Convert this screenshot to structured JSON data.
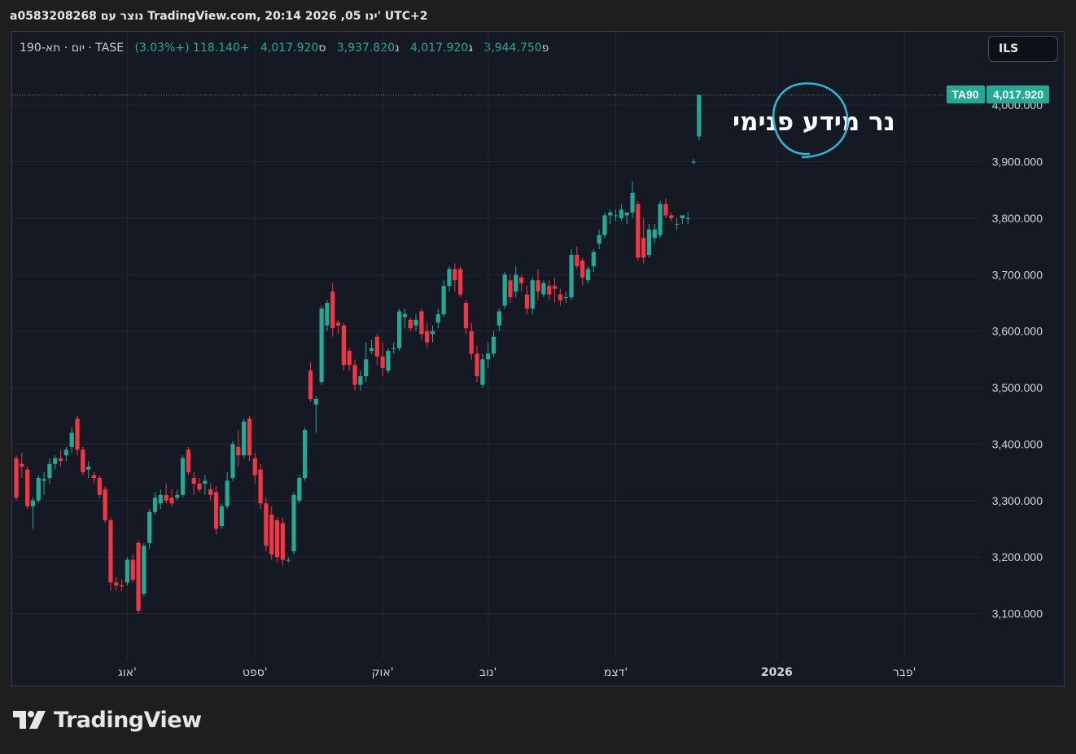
{
  "header": {
    "title_text": "a0583208268 נוצר עם TradingView.com, 20:14 2026 ,05 ינו' UTC+2"
  },
  "legend": {
    "symbol": "1יום · תא-90 · TASE",
    "open_label": "פ",
    "open": "3,944.750",
    "high_label": "ג",
    "high": "4,017.920",
    "low_label": "נ",
    "low": "3,937.820",
    "close_label": "ס",
    "close": "4,017.920",
    "change": "+118.140 (+3.03%)"
  },
  "currency_button": "ILS",
  "price_label": {
    "ticker": "TA90",
    "value": "4,017.920"
  },
  "annotation": {
    "text": "נר מידע פנימי"
  },
  "footer": {
    "brand": "TradingView"
  },
  "colors": {
    "up": "#22ab94",
    "down": "#f23645",
    "background": "#151924",
    "grid": "#232733",
    "annotation_circle": "#2ab8d6"
  },
  "icons": {
    "footer": "tradingview-logo-icon"
  },
  "chart_data": {
    "type": "candlestick",
    "title": "",
    "ylim": [
      3020,
      4130
    ],
    "yticks": [
      3100,
      3200,
      3300,
      3400,
      3500,
      3600,
      3700,
      3800,
      3900,
      4000
    ],
    "ytick_labels": [
      "3,100.000",
      "3,200.000",
      "3,300.000",
      "3,400.000",
      "3,500.000",
      "3,600.000",
      "3,700.000",
      "3,800.000",
      "3,900.000",
      "4,000.000"
    ],
    "xticks": [
      {
        "label": "אוג'",
        "index": 20,
        "bold": false
      },
      {
        "label": "ספט'",
        "index": 43,
        "bold": false
      },
      {
        "label": "אוק'",
        "index": 66,
        "bold": false
      },
      {
        "label": "נוב'",
        "index": 85,
        "bold": false
      },
      {
        "label": "דצמ'",
        "index": 108,
        "bold": false
      },
      {
        "label": "2026",
        "index": 137,
        "bold": true
      },
      {
        "label": "פבר'",
        "index": 160,
        "bold": false
      }
    ],
    "last_price": 4017.92,
    "candles": [
      [
        3375,
        3380,
        3300,
        3305
      ],
      [
        3365,
        3385,
        3340,
        3360
      ],
      [
        3355,
        3360,
        3285,
        3290
      ],
      [
        3290,
        3305,
        3250,
        3300
      ],
      [
        3300,
        3345,
        3295,
        3340
      ],
      [
        3335,
        3350,
        3310,
        3338
      ],
      [
        3340,
        3375,
        3330,
        3365
      ],
      [
        3365,
        3380,
        3355,
        3375
      ],
      [
        3375,
        3390,
        3360,
        3370
      ],
      [
        3380,
        3395,
        3370,
        3390
      ],
      [
        3395,
        3430,
        3385,
        3420
      ],
      [
        3445,
        3450,
        3380,
        3390
      ],
      [
        3390,
        3395,
        3345,
        3350
      ],
      [
        3355,
        3370,
        3340,
        3360
      ],
      [
        3345,
        3350,
        3330,
        3340
      ],
      [
        3340,
        3345,
        3305,
        3310
      ],
      [
        3320,
        3325,
        3260,
        3265
      ],
      [
        3265,
        3270,
        3140,
        3155
      ],
      [
        3155,
        3165,
        3140,
        3150
      ],
      [
        3150,
        3160,
        3140,
        3148
      ],
      [
        3155,
        3200,
        3150,
        3195
      ],
      [
        3195,
        3205,
        3155,
        3160
      ],
      [
        3225,
        3230,
        3100,
        3105
      ],
      [
        3135,
        3225,
        3130,
        3220
      ],
      [
        3225,
        3285,
        3215,
        3280
      ],
      [
        3280,
        3315,
        3275,
        3305
      ],
      [
        3295,
        3320,
        3285,
        3310
      ],
      [
        3310,
        3330,
        3295,
        3300
      ],
      [
        3305,
        3320,
        3290,
        3295
      ],
      [
        3305,
        3320,
        3300,
        3310
      ],
      [
        3310,
        3380,
        3305,
        3375
      ],
      [
        3390,
        3395,
        3345,
        3350
      ],
      [
        3340,
        3350,
        3310,
        3330
      ],
      [
        3330,
        3340,
        3315,
        3320
      ],
      [
        3330,
        3345,
        3310,
        3335
      ],
      [
        3320,
        3330,
        3300,
        3310
      ],
      [
        3315,
        3325,
        3240,
        3250
      ],
      [
        3255,
        3295,
        3250,
        3290
      ],
      [
        3290,
        3350,
        3285,
        3335
      ],
      [
        3340,
        3405,
        3335,
        3400
      ],
      [
        3395,
        3425,
        3360,
        3380
      ],
      [
        3380,
        3445,
        3375,
        3440
      ],
      [
        3445,
        3450,
        3370,
        3380
      ],
      [
        3375,
        3385,
        3330,
        3345
      ],
      [
        3355,
        3365,
        3285,
        3295
      ],
      [
        3295,
        3305,
        3210,
        3220
      ],
      [
        3275,
        3290,
        3195,
        3205
      ],
      [
        3265,
        3270,
        3190,
        3200
      ],
      [
        3260,
        3270,
        3185,
        3195
      ],
      [
        3195,
        3200,
        3190,
        3195
      ],
      [
        3210,
        3315,
        3205,
        3310
      ],
      [
        3300,
        3345,
        3295,
        3340
      ],
      [
        3340,
        3430,
        3335,
        3425
      ],
      [
        3530,
        3545,
        3475,
        3480
      ],
      [
        3470,
        3485,
        3420,
        3480
      ],
      [
        3510,
        3645,
        3505,
        3640
      ],
      [
        3610,
        3655,
        3600,
        3650
      ],
      [
        3670,
        3685,
        3590,
        3605
      ],
      [
        3615,
        3620,
        3595,
        3610
      ],
      [
        3610,
        3615,
        3530,
        3540
      ],
      [
        3565,
        3570,
        3530,
        3540
      ],
      [
        3540,
        3550,
        3495,
        3505
      ],
      [
        3505,
        3530,
        3495,
        3520
      ],
      [
        3520,
        3580,
        3510,
        3550
      ],
      [
        3565,
        3585,
        3560,
        3570
      ],
      [
        3590,
        3595,
        3540,
        3555
      ],
      [
        3555,
        3580,
        3520,
        3535
      ],
      [
        3530,
        3570,
        3525,
        3565
      ],
      [
        3570,
        3580,
        3560,
        3570
      ],
      [
        3570,
        3640,
        3565,
        3635
      ],
      [
        3625,
        3640,
        3605,
        3630
      ],
      [
        3620,
        3625,
        3600,
        3605
      ],
      [
        3610,
        3630,
        3600,
        3620
      ],
      [
        3635,
        3640,
        3585,
        3595
      ],
      [
        3600,
        3615,
        3570,
        3580
      ],
      [
        3595,
        3610,
        3580,
        3600
      ],
      [
        3615,
        3640,
        3605,
        3630
      ],
      [
        3630,
        3690,
        3625,
        3680
      ],
      [
        3680,
        3715,
        3670,
        3710
      ],
      [
        3710,
        3720,
        3670,
        3690
      ],
      [
        3710,
        3715,
        3660,
        3665
      ],
      [
        3650,
        3655,
        3595,
        3605
      ],
      [
        3600,
        3615,
        3550,
        3560
      ],
      [
        3560,
        3575,
        3510,
        3520
      ],
      [
        3505,
        3560,
        3500,
        3550
      ],
      [
        3550,
        3580,
        3535,
        3560
      ],
      [
        3560,
        3600,
        3555,
        3590
      ],
      [
        3610,
        3640,
        3600,
        3635
      ],
      [
        3645,
        3705,
        3640,
        3700
      ],
      [
        3690,
        3700,
        3650,
        3660
      ],
      [
        3670,
        3715,
        3660,
        3700
      ],
      [
        3695,
        3700,
        3670,
        3685
      ],
      [
        3665,
        3680,
        3630,
        3640
      ],
      [
        3640,
        3695,
        3630,
        3690
      ],
      [
        3690,
        3710,
        3655,
        3670
      ],
      [
        3665,
        3690,
        3660,
        3685
      ],
      [
        3680,
        3690,
        3655,
        3665
      ],
      [
        3680,
        3695,
        3650,
        3675
      ],
      [
        3665,
        3675,
        3645,
        3655
      ],
      [
        3660,
        3670,
        3650,
        3660
      ],
      [
        3660,
        3745,
        3655,
        3735
      ],
      [
        3735,
        3750,
        3710,
        3715
      ],
      [
        3725,
        3730,
        3680,
        3695
      ],
      [
        3690,
        3715,
        3685,
        3710
      ],
      [
        3715,
        3745,
        3705,
        3740
      ],
      [
        3755,
        3780,
        3745,
        3770
      ],
      [
        3770,
        3810,
        3765,
        3805
      ],
      [
        3805,
        3815,
        3790,
        3810
      ],
      [
        3805,
        3815,
        3795,
        3805
      ],
      [
        3800,
        3825,
        3795,
        3815
      ],
      [
        3805,
        3810,
        3790,
        3810
      ],
      [
        3810,
        3865,
        3800,
        3845
      ],
      [
        3825,
        3830,
        3725,
        3730
      ],
      [
        3765,
        3800,
        3720,
        3730
      ],
      [
        3735,
        3790,
        3730,
        3780
      ],
      [
        3765,
        3790,
        3755,
        3780
      ],
      [
        3770,
        3830,
        3765,
        3825
      ],
      [
        3825,
        3835,
        3800,
        3805
      ],
      [
        3805,
        3810,
        3795,
        3800
      ],
      [
        3790,
        3800,
        3780,
        3790
      ],
      [
        3800,
        3805,
        3790,
        3805
      ],
      [
        3800,
        3810,
        3790,
        3800
      ],
      [
        3900,
        3905,
        3895,
        3900
      ],
      [
        3944.75,
        4017.92,
        3937.82,
        4017.92
      ]
    ]
  }
}
